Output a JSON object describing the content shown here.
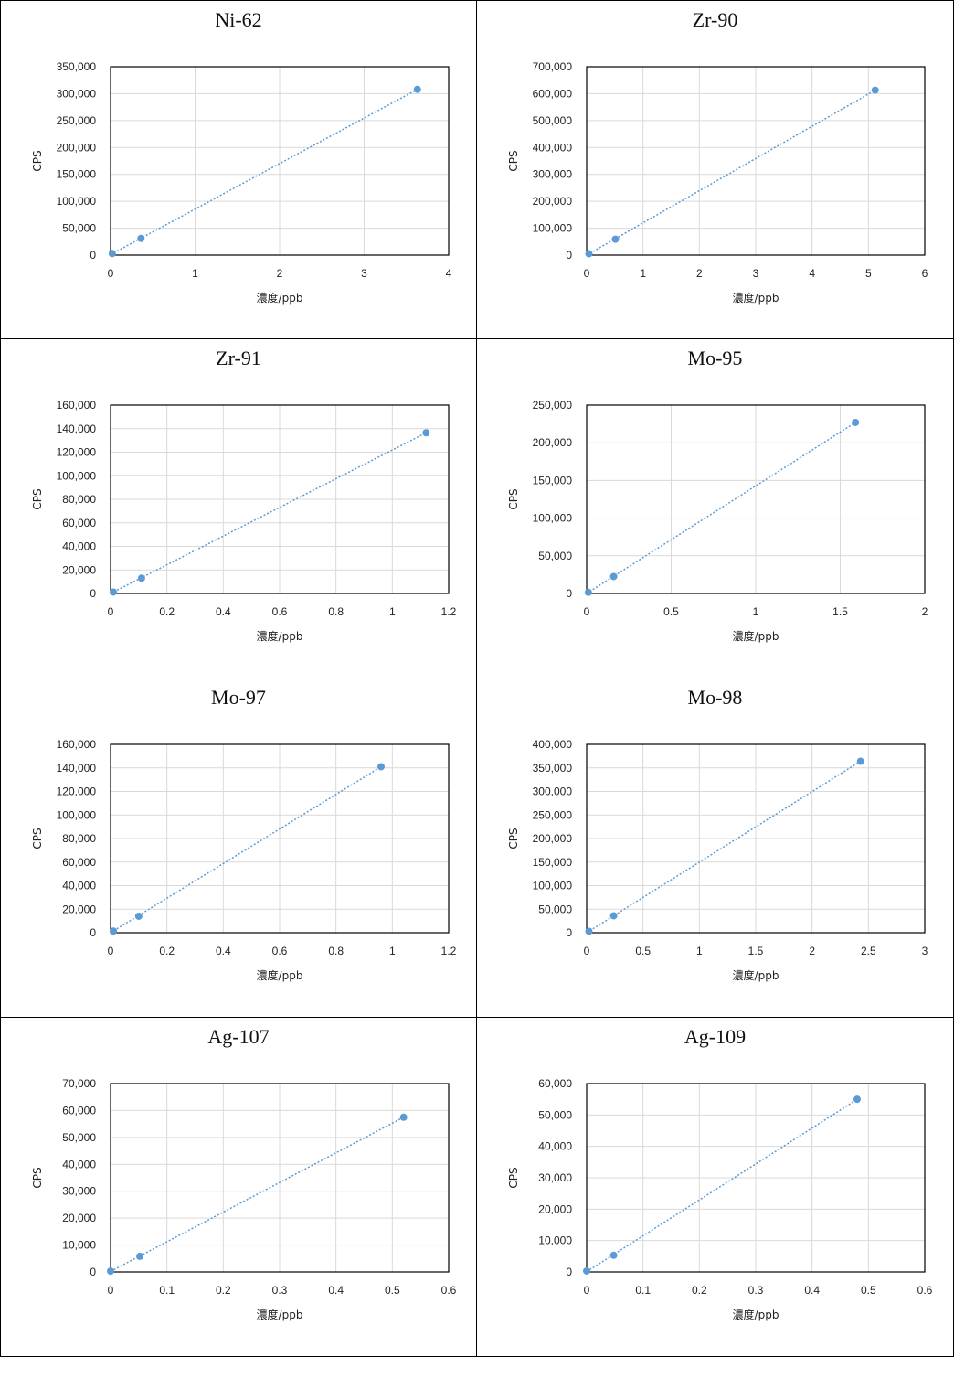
{
  "colors": {
    "series": "#5b9bd5",
    "grid": "#d9d9d9",
    "frame": "#000000"
  },
  "chart_data": [
    {
      "type": "scatter",
      "title": "Ni-62",
      "xlabel": "濃度/ppb",
      "ylabel": "CPS",
      "xlim": [
        0,
        4
      ],
      "ylim": [
        0,
        350000
      ],
      "x_ticks": [
        0,
        1,
        2,
        3,
        4
      ],
      "x_tick_labels": [
        "0",
        "1",
        "2",
        "3",
        "4"
      ],
      "y_ticks": [
        0,
        50000,
        100000,
        150000,
        200000,
        250000,
        300000,
        350000
      ],
      "y_tick_labels": [
        "0",
        "50,000",
        "100,000",
        "150,000",
        "200,000",
        "250,000",
        "300,000",
        "350,000"
      ],
      "trendline": "linear",
      "grid": true,
      "legend": "none",
      "points": [
        {
          "x": 0.02,
          "y": 3000
        },
        {
          "x": 0.36,
          "y": 31000
        },
        {
          "x": 3.63,
          "y": 308000
        }
      ]
    },
    {
      "type": "scatter",
      "title": "Zr-90",
      "xlabel": "濃度/ppb",
      "ylabel": "CPS",
      "xlim": [
        0,
        6
      ],
      "ylim": [
        0,
        700000
      ],
      "x_ticks": [
        0,
        1,
        2,
        3,
        4,
        5,
        6
      ],
      "x_tick_labels": [
        "0",
        "1",
        "2",
        "3",
        "4",
        "5",
        "6"
      ],
      "y_ticks": [
        0,
        100000,
        200000,
        300000,
        400000,
        500000,
        600000,
        700000
      ],
      "y_tick_labels": [
        "0",
        "100,000",
        "200,000",
        "300,000",
        "400,000",
        "500,000",
        "600,000",
        "700,000"
      ],
      "trendline": "linear",
      "grid": true,
      "legend": "none",
      "points": [
        {
          "x": 0.04,
          "y": 5000
        },
        {
          "x": 0.51,
          "y": 59000
        },
        {
          "x": 5.12,
          "y": 613000
        }
      ]
    },
    {
      "type": "scatter",
      "title": "Zr-91",
      "xlabel": "濃度/ppb",
      "ylabel": "CPS",
      "xlim": [
        0,
        1.2
      ],
      "ylim": [
        0,
        160000
      ],
      "x_ticks": [
        0,
        0.2,
        0.4,
        0.6,
        0.8,
        1,
        1.2
      ],
      "x_tick_labels": [
        "0",
        "0.2",
        "0.4",
        "0.6",
        "0.8",
        "1",
        "1.2"
      ],
      "y_ticks": [
        0,
        20000,
        40000,
        60000,
        80000,
        100000,
        120000,
        140000,
        160000
      ],
      "y_tick_labels": [
        "0",
        "20,000",
        "40,000",
        "60,000",
        "80,000",
        "100,000",
        "120,000",
        "140,000",
        "160,000"
      ],
      "trendline": "linear",
      "grid": true,
      "legend": "none",
      "points": [
        {
          "x": 0.01,
          "y": 1200
        },
        {
          "x": 0.11,
          "y": 13000
        },
        {
          "x": 1.12,
          "y": 136500
        }
      ]
    },
    {
      "type": "scatter",
      "title": "Mo-95",
      "xlabel": "濃度/ppb",
      "ylabel": "CPS",
      "xlim": [
        0,
        2
      ],
      "ylim": [
        0,
        250000
      ],
      "x_ticks": [
        0,
        0.5,
        1,
        1.5,
        2
      ],
      "x_tick_labels": [
        "0",
        "0.5",
        "1",
        "1.5",
        "2"
      ],
      "y_ticks": [
        0,
        50000,
        100000,
        150000,
        200000,
        250000
      ],
      "y_tick_labels": [
        "0",
        "50,000",
        "100,000",
        "150,000",
        "200,000",
        "250,000"
      ],
      "trendline": "linear",
      "grid": true,
      "legend": "none",
      "points": [
        {
          "x": 0.01,
          "y": 1500
        },
        {
          "x": 0.16,
          "y": 22500
        },
        {
          "x": 1.59,
          "y": 227000
        }
      ]
    },
    {
      "type": "scatter",
      "title": "Mo-97",
      "xlabel": "濃度/ppb",
      "ylabel": "CPS",
      "xlim": [
        0,
        1.2
      ],
      "ylim": [
        0,
        160000
      ],
      "x_ticks": [
        0,
        0.2,
        0.4,
        0.6,
        0.8,
        1,
        1.2
      ],
      "x_tick_labels": [
        "0",
        "0.2",
        "0.4",
        "0.6",
        "0.8",
        "1",
        "1.2"
      ],
      "y_ticks": [
        0,
        20000,
        40000,
        60000,
        80000,
        100000,
        120000,
        140000,
        160000
      ],
      "y_tick_labels": [
        "0",
        "20,000",
        "40,000",
        "60,000",
        "80,000",
        "100,000",
        "120,000",
        "140,000",
        "160,000"
      ],
      "trendline": "linear",
      "grid": true,
      "legend": "none",
      "points": [
        {
          "x": 0.01,
          "y": 1400
        },
        {
          "x": 0.1,
          "y": 14000
        },
        {
          "x": 0.96,
          "y": 141000
        }
      ]
    },
    {
      "type": "scatter",
      "title": "Mo-98",
      "xlabel": "濃度/ppb",
      "ylabel": "CPS",
      "xlim": [
        0,
        3
      ],
      "ylim": [
        0,
        400000
      ],
      "x_ticks": [
        0,
        0.5,
        1,
        1.5,
        2,
        2.5,
        3
      ],
      "x_tick_labels": [
        "0",
        "0.5",
        "1",
        "1.5",
        "2",
        "2.5",
        "3"
      ],
      "y_ticks": [
        0,
        50000,
        100000,
        150000,
        200000,
        250000,
        300000,
        350000,
        400000
      ],
      "y_tick_labels": [
        "0",
        "50,000",
        "100,000",
        "150,000",
        "200,000",
        "250,000",
        "300,000",
        "350,000",
        "400,000"
      ],
      "trendline": "linear",
      "grid": true,
      "legend": "none",
      "points": [
        {
          "x": 0.02,
          "y": 3000
        },
        {
          "x": 0.24,
          "y": 36000
        },
        {
          "x": 2.43,
          "y": 364000
        }
      ]
    },
    {
      "type": "scatter",
      "title": "Ag-107",
      "xlabel": "濃度/ppb",
      "ylabel": "CPS",
      "xlim": [
        0,
        0.6
      ],
      "ylim": [
        0,
        70000
      ],
      "x_ticks": [
        0,
        0.1,
        0.2,
        0.3,
        0.4,
        0.5,
        0.6
      ],
      "x_tick_labels": [
        "0",
        "0.1",
        "0.2",
        "0.3",
        "0.4",
        "0.5",
        "0.6"
      ],
      "y_ticks": [
        0,
        10000,
        20000,
        30000,
        40000,
        50000,
        60000,
        70000
      ],
      "y_tick_labels": [
        "0",
        "10,000",
        "20,000",
        "30,000",
        "40,000",
        "50,000",
        "60,000",
        "70,000"
      ],
      "trendline": "linear",
      "grid": true,
      "legend": "none",
      "points": [
        {
          "x": 0.0,
          "y": 300
        },
        {
          "x": 0.052,
          "y": 5800
        },
        {
          "x": 0.52,
          "y": 57500
        }
      ]
    },
    {
      "type": "scatter",
      "title": "Ag-109",
      "xlabel": "濃度/ppb",
      "ylabel": "CPS",
      "xlim": [
        0,
        0.6
      ],
      "ylim": [
        0,
        60000
      ],
      "x_ticks": [
        0,
        0.1,
        0.2,
        0.3,
        0.4,
        0.5,
        0.6
      ],
      "x_tick_labels": [
        "0",
        "0.1",
        "0.2",
        "0.3",
        "0.4",
        "0.5",
        "0.6"
      ],
      "y_ticks": [
        0,
        10000,
        20000,
        30000,
        40000,
        50000,
        60000
      ],
      "y_tick_labels": [
        "0",
        "10,000",
        "20,000",
        "30,000",
        "40,000",
        "50,000",
        "60,000"
      ],
      "trendline": "linear",
      "grid": true,
      "legend": "none",
      "points": [
        {
          "x": 0.0,
          "y": 300
        },
        {
          "x": 0.048,
          "y": 5300
        },
        {
          "x": 0.48,
          "y": 55000
        }
      ]
    }
  ]
}
